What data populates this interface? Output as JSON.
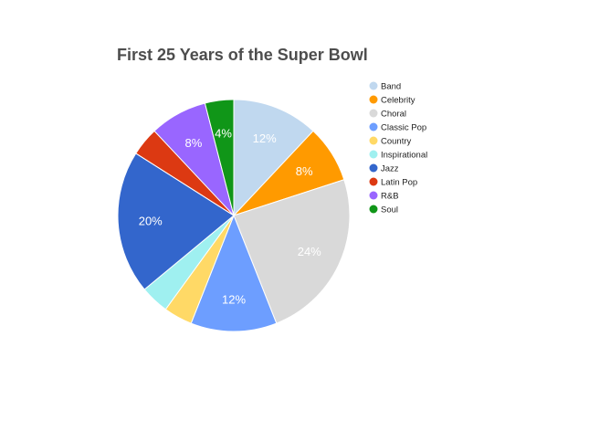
{
  "chart_data": {
    "type": "pie",
    "title": "First 25 Years of the Super Bowl",
    "legend_position": "right",
    "slices": [
      {
        "label": "Band",
        "value": 12,
        "display": "12%",
        "color": "#c0d8ef"
      },
      {
        "label": "Celebrity",
        "value": 8,
        "display": "8%",
        "color": "#ff9a00"
      },
      {
        "label": "Choral",
        "value": 24,
        "display": "24%",
        "color": "#d9d9d9"
      },
      {
        "label": "Classic Pop",
        "value": 12,
        "display": "12%",
        "color": "#6d9eff"
      },
      {
        "label": "Country",
        "value": 4,
        "display": "",
        "color": "#ffd966"
      },
      {
        "label": "Inspirational",
        "value": 4,
        "display": "",
        "color": "#9ff0f0"
      },
      {
        "label": "Jazz",
        "value": 20,
        "display": "20%",
        "color": "#3366cc"
      },
      {
        "label": "Latin Pop",
        "value": 4,
        "display": "",
        "color": "#dc3912"
      },
      {
        "label": "R&B",
        "value": 8,
        "display": "8%",
        "color": "#9966ff"
      },
      {
        "label": "Soul",
        "value": 4,
        "display": "4%",
        "color": "#109618"
      }
    ]
  }
}
